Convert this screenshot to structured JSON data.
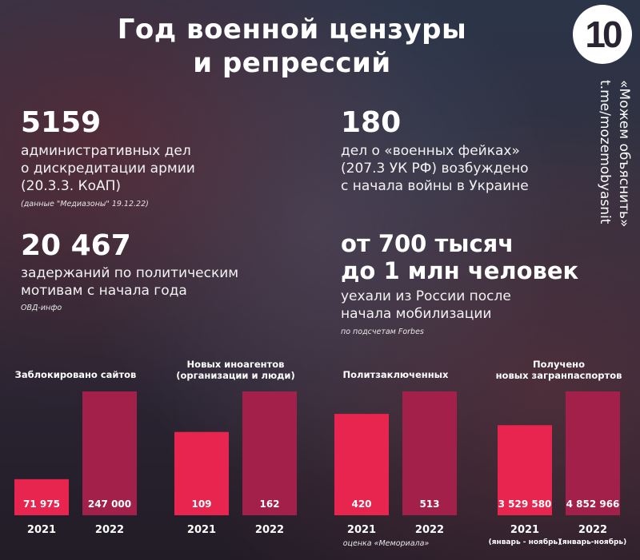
{
  "title": {
    "line1": "Год военной цензуры",
    "line2": "и репрессий"
  },
  "logo_text": "10",
  "sidebar": {
    "line1": "«Можем объяснить»",
    "line2": "t.me/mozemobyasnit"
  },
  "stats": {
    "admin_cases": {
      "number": "5159",
      "line1": "административных дел",
      "line2": "о дискредитации армии",
      "line3": "(20.3.3. КоАП)",
      "source": "(данные \"Медиазоны\" 19.12.22)"
    },
    "fake_cases": {
      "number": "180",
      "line1": "дел о «военных фейках»",
      "line2": "(207.3 УК РФ) возбуждено",
      "line3": "с начала войны в Украине"
    },
    "detentions": {
      "number": "20 467",
      "line1": "задержаний  по политическим",
      "line2": "мотивам с начала года",
      "source": "ОВД-инфо"
    },
    "emigration": {
      "number_line1": "от 700 тысяч",
      "number_line2": "до 1 млн человек",
      "line1": "уехали из России после",
      "line2": "начала мобилизации",
      "source": "по подсчетам Forbes"
    }
  },
  "colors": {
    "bar_2021": "#e8254e",
    "bar_2022": "#a3204b",
    "text": "#ffffff"
  },
  "chart_data": [
    {
      "type": "bar",
      "title": "Заблокировано сайтов",
      "categories": [
        "2021",
        "2022"
      ],
      "values": [
        71975,
        247000
      ],
      "value_labels": [
        "71 975",
        "247 000"
      ],
      "notes": [
        "",
        ""
      ],
      "footnote": ""
    },
    {
      "type": "bar",
      "title": "Новых иноагентов\n(организации и люди)",
      "categories": [
        "2021",
        "2022"
      ],
      "values": [
        109,
        162
      ],
      "value_labels": [
        "109",
        "162"
      ],
      "notes": [
        "",
        ""
      ],
      "footnote": ""
    },
    {
      "type": "bar",
      "title": "Политзаключенных",
      "categories": [
        "2021",
        "2022"
      ],
      "values": [
        420,
        513
      ],
      "value_labels": [
        "420",
        "513"
      ],
      "notes": [
        "",
        ""
      ],
      "footnote": "оценка «Мемориала»"
    },
    {
      "type": "bar",
      "title": "Получено\nновых загранпаспортов",
      "categories": [
        "2021",
        "2022"
      ],
      "values": [
        3529580,
        4852966
      ],
      "value_labels": [
        "3 529 580",
        "4 852 966"
      ],
      "notes": [
        "(январь - ноябрь)",
        "(январь-ноябрь)"
      ],
      "footnote": ""
    }
  ]
}
